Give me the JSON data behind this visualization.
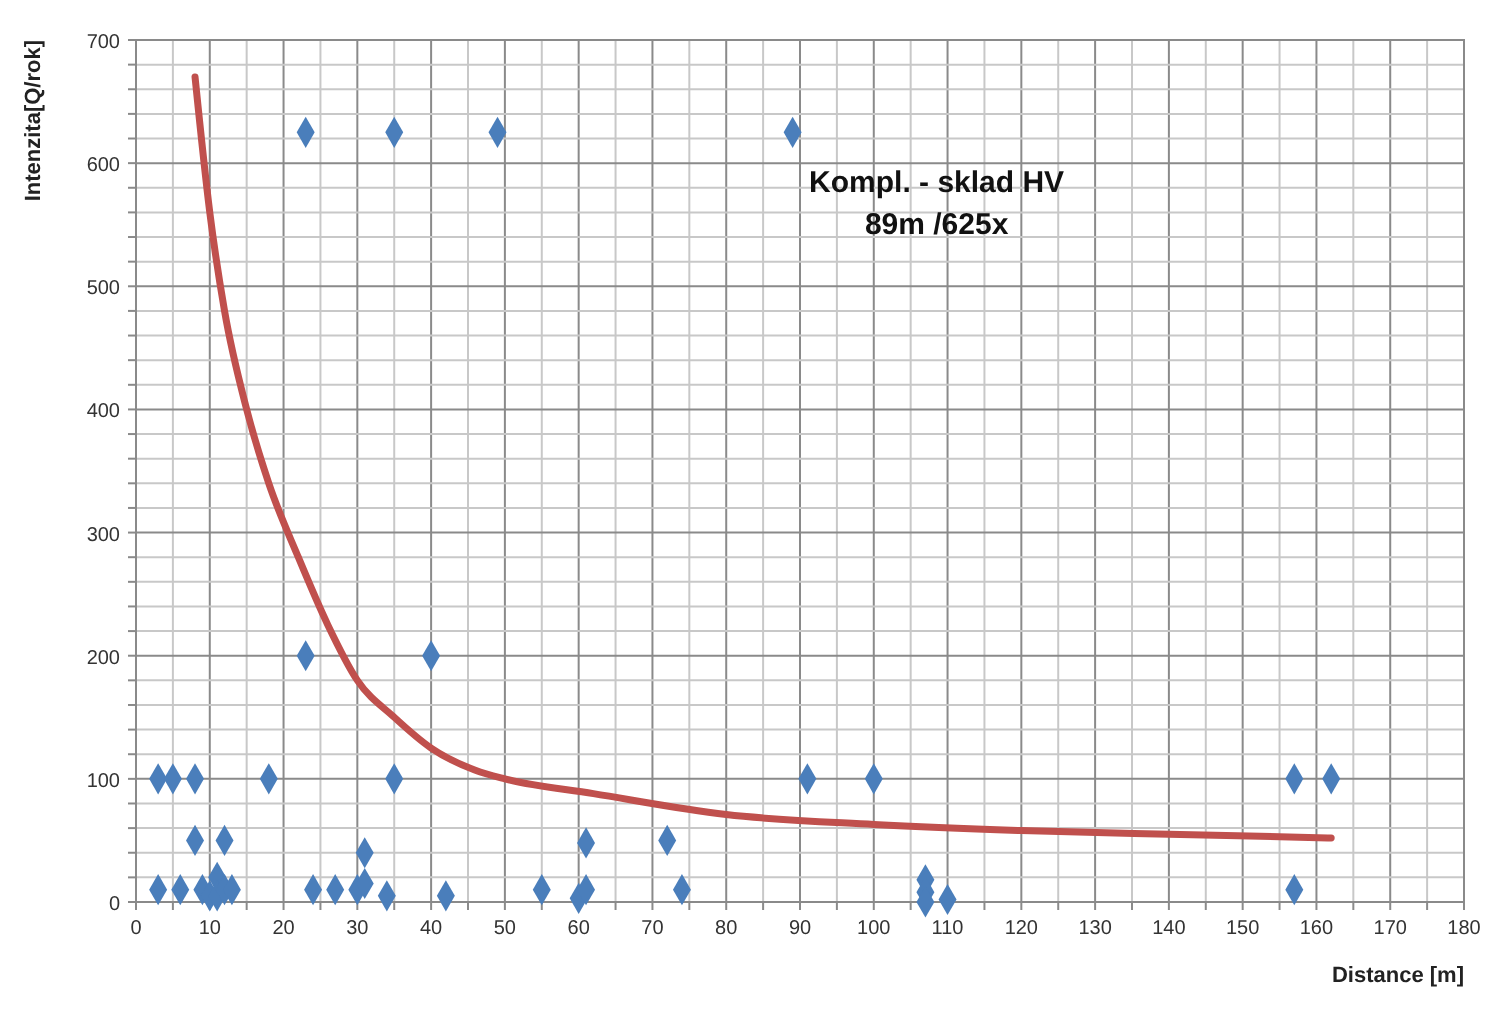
{
  "chart_data": {
    "type": "scatter",
    "xlabel": "Distance [m]",
    "ylabel": "Intenzita[Q/rok]",
    "xlim": [
      0,
      180
    ],
    "ylim": [
      0,
      700
    ],
    "xticks": [
      0,
      {
        "value": 5,
        "label": null
      },
      10,
      {
        "value": 15,
        "label": null
      },
      20,
      {
        "value": 25,
        "label": null
      },
      30,
      {
        "value": 35,
        "label": null
      },
      40,
      {
        "value": 45,
        "label": null
      },
      50,
      {
        "value": 55,
        "label": null
      },
      60,
      {
        "value": 65,
        "label": null
      },
      70,
      {
        "value": 75,
        "label": null
      },
      80,
      {
        "value": 85,
        "label": null
      },
      90,
      {
        "value": 95,
        "label": null
      },
      100,
      {
        "value": 105,
        "label": null
      },
      110,
      {
        "value": 115,
        "label": null
      },
      120,
      {
        "value": 125,
        "label": null
      },
      130,
      {
        "value": 135,
        "label": null
      },
      140,
      {
        "value": 145,
        "label": null
      },
      150,
      {
        "value": 155,
        "label": null
      },
      160,
      {
        "value": 165,
        "label": null
      },
      170,
      {
        "value": 175,
        "label": null
      },
      180
    ],
    "yticks": [
      0,
      {
        "value": 20,
        "label": null
      },
      {
        "value": 40,
        "label": null
      },
      {
        "value": 60,
        "label": null
      },
      {
        "value": 80,
        "label": null
      },
      100,
      {
        "value": 120,
        "label": null
      },
      {
        "value": 140,
        "label": null
      },
      {
        "value": 160,
        "label": null
      },
      {
        "value": 180,
        "label": null
      },
      200,
      {
        "value": 220,
        "label": null
      },
      {
        "value": 240,
        "label": null
      },
      {
        "value": 260,
        "label": null
      },
      {
        "value": 280,
        "label": null
      },
      300,
      {
        "value": 320,
        "label": null
      },
      {
        "value": 340,
        "label": null
      },
      {
        "value": 360,
        "label": null
      },
      {
        "value": 380,
        "label": null
      },
      400,
      {
        "value": 420,
        "label": null
      },
      {
        "value": 440,
        "label": null
      },
      {
        "value": 460,
        "label": null
      },
      {
        "value": 480,
        "label": null
      },
      500,
      {
        "value": 520,
        "label": null
      },
      {
        "value": 540,
        "label": null
      },
      {
        "value": 560,
        "label": null
      },
      {
        "value": 580,
        "label": null
      },
      600,
      {
        "value": 620,
        "label": null
      },
      {
        "value": 640,
        "label": null
      },
      {
        "value": 660,
        "label": null
      },
      {
        "value": 680,
        "label": null
      },
      700
    ],
    "grid": true,
    "marker": "diamond",
    "series": [
      {
        "color": "#4a7ebb",
        "x": [
          23,
          35,
          49,
          89,
          23,
          40,
          3,
          5,
          8,
          18,
          35,
          91,
          100,
          157,
          162,
          8,
          12,
          31,
          61,
          72,
          3,
          6,
          9,
          10,
          11,
          11,
          12,
          13,
          24,
          27,
          30,
          31,
          34,
          42,
          55,
          60,
          61,
          74,
          107,
          107,
          107,
          110,
          157
        ],
        "values": [
          625,
          625,
          625,
          625,
          200,
          200,
          100,
          100,
          100,
          100,
          100,
          100,
          100,
          100,
          100,
          50,
          50,
          40,
          48,
          50,
          10,
          10,
          10,
          5,
          20,
          5,
          10,
          10,
          10,
          10,
          10,
          15,
          5,
          5,
          10,
          3,
          10,
          10,
          18,
          8,
          0,
          2,
          10
        ]
      },
      {
        "type": "line",
        "color": "#c0504d",
        "marker": "none",
        "x": [
          8,
          10,
          12,
          15,
          18,
          22,
          26,
          30,
          35,
          40,
          46,
          50,
          62,
          80,
          100,
          120,
          140,
          162
        ],
        "values": [
          670,
          560,
          480,
          400,
          340,
          280,
          225,
          180,
          150,
          125,
          107,
          100,
          88,
          71,
          63,
          58,
          55,
          52
        ]
      }
    ],
    "annotations": [
      {
        "text": "Kompl. - sklad HV\n89m /625x",
        "x": 89,
        "y": 625
      }
    ]
  }
}
